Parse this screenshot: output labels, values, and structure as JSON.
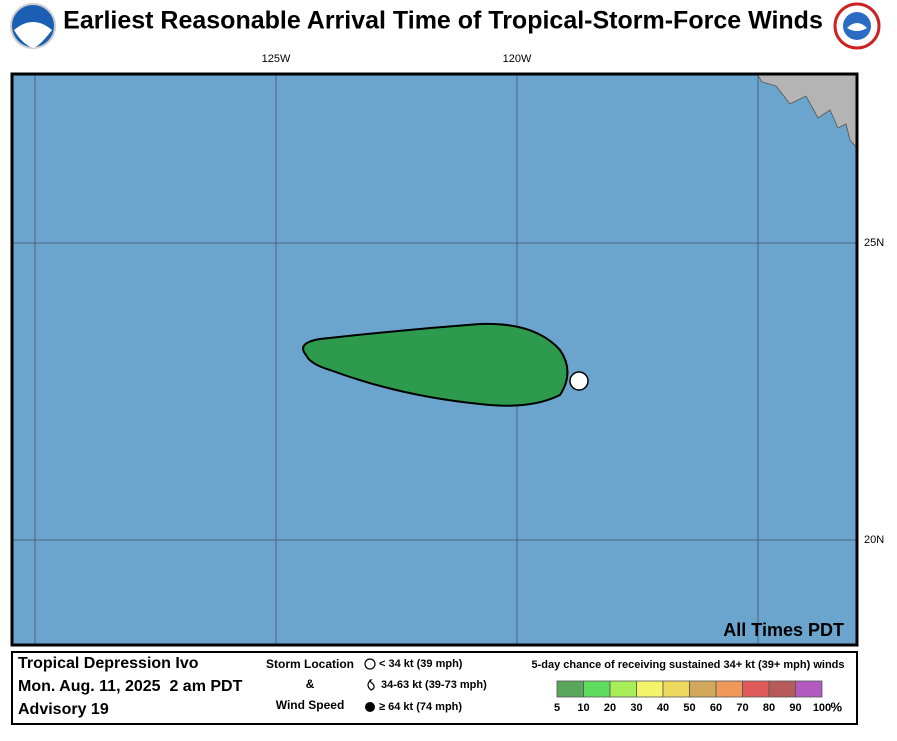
{
  "header": {
    "title": "Earliest Reasonable Arrival Time of Tropical-Storm-Force Winds"
  },
  "map": {
    "lon_labels": [
      "125W",
      "120W"
    ],
    "lat_labels": [
      "25N",
      "20N"
    ],
    "time_note": "All Times PDT"
  },
  "info": {
    "storm": "Tropical Depression Ivo",
    "date": "Mon. Aug. 11, 2025  2 am PDT",
    "advisory": "Advisory 19"
  },
  "key": {
    "heading": [
      "Storm Location",
      "&",
      "Wind Speed"
    ],
    "entries": [
      "< 34 kt (39 mph)",
      "34-63 kt (39-73 mph)",
      "≥ 64 kt (74 mph)"
    ]
  },
  "scale": {
    "title": "5-day chance of receiving sustained 34+ kt (39+ mph) winds",
    "labels": [
      "5",
      "10",
      "20",
      "30",
      "40",
      "50",
      "60",
      "70",
      "80",
      "90",
      "100"
    ],
    "unit": "%",
    "colors": [
      "#5aa65a",
      "#5ddc5d",
      "#a8ee58",
      "#f4f46a",
      "#ecd85c",
      "#d2a95c",
      "#ef9a5a",
      "#de5a5a",
      "#b65a5a",
      "#b25ac0"
    ]
  }
}
